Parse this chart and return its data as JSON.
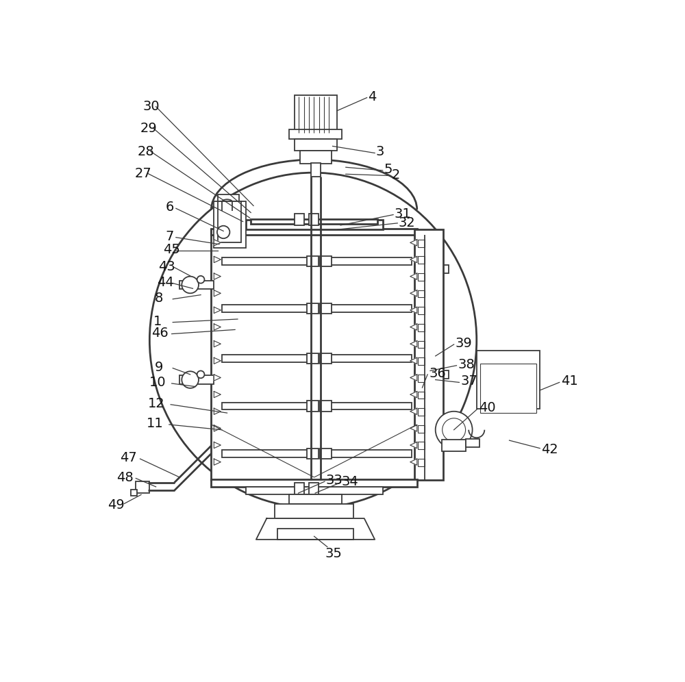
{
  "bg_color": "#ffffff",
  "line_color": "#3a3a3a",
  "lw": 1.3,
  "lw_thick": 2.0,
  "lw_thin": 0.8
}
